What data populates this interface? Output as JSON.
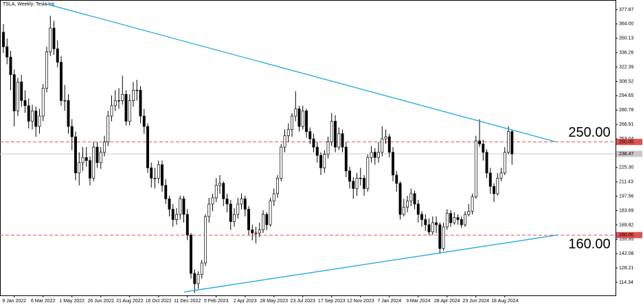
{
  "chart_data": {
    "type": "candlestick",
    "title": "TSLA, Weekly:  Tesla Inc",
    "xlim": [
      -0.95,
      169.7
    ],
    "ylim": [
      101.73,
      387.16
    ],
    "yticks": [
      377.87,
      {
        "value": 364.0,
        "label": "364.00"
      },
      350.13,
      336.26,
      322.39,
      308.52,
      294.65,
      280.78,
      266.91,
      253.04,
      239.17,
      {
        "value": 225.3,
        "label": "225.30"
      },
      211.43,
      197.56,
      183.69,
      169.82,
      155.95,
      142.08,
      128.21,
      114.34
    ],
    "xticks": [
      {
        "value": 3,
        "label": "9 Jan 2022"
      },
      {
        "value": 11,
        "label": "6 Mar 2022"
      },
      {
        "value": 19,
        "label": "1 May 2022"
      },
      {
        "value": 27,
        "label": "26 Jun 2022"
      },
      {
        "value": 35,
        "label": "21 Aug 2022"
      },
      {
        "value": 43,
        "label": "16 Oct 2022"
      },
      {
        "value": 51,
        "label": "11 Dec 2022"
      },
      {
        "value": 59,
        "label": "5 Feb 2023"
      },
      {
        "value": 67,
        "label": "2 Apr 2023"
      },
      {
        "value": 75,
        "label": "28 May 2023"
      },
      {
        "value": 83,
        "label": "23 Jul 2023"
      },
      {
        "value": 91,
        "label": "17 Sep 2023"
      },
      {
        "value": 99,
        "label": "12 Nov 2023"
      },
      {
        "value": 107,
        "label": "7 Jan 2024"
      },
      {
        "value": 115,
        "label": "3 Mar 2024"
      },
      {
        "value": 123,
        "label": "28 Apr 2024"
      },
      {
        "value": 131,
        "label": "23 Jun 2024"
      },
      {
        "value": 139,
        "label": "18 Aug 2024"
      }
    ],
    "up_color": "#ffffff",
    "down_color": "#000000",
    "ohlc": [
      [
        356,
        364,
        336,
        342
      ],
      [
        342,
        350,
        325,
        332
      ],
      [
        332,
        338,
        300,
        315
      ],
      [
        315,
        320,
        265,
        280
      ],
      [
        280,
        312,
        275,
        308
      ],
      [
        308,
        315,
        284,
        290
      ],
      [
        290,
        300,
        278,
        285
      ],
      [
        285,
        292,
        263,
        270
      ],
      [
        270,
        286,
        262,
        280
      ],
      [
        280,
        284,
        255,
        265
      ],
      [
        265,
        282,
        258,
        275
      ],
      [
        275,
        306,
        270,
        302
      ],
      [
        302,
        342,
        298,
        337
      ],
      [
        337,
        372,
        333,
        360
      ],
      [
        360,
        367,
        334,
        340
      ],
      [
        340,
        348,
        322,
        327
      ],
      [
        327,
        333,
        285,
        290
      ],
      [
        290,
        305,
        280,
        290
      ],
      [
        290,
        296,
        258,
        265
      ],
      [
        265,
        272,
        242,
        255
      ],
      [
        255,
        260,
        213,
        220
      ],
      [
        220,
        240,
        208,
        230
      ],
      [
        230,
        245,
        222,
        235
      ],
      [
        235,
        245,
        226,
        232
      ],
      [
        232,
        236,
        208,
        215
      ],
      [
        215,
        250,
        212,
        245
      ],
      [
        245,
        250,
        225,
        230
      ],
      [
        230,
        245,
        224,
        240
      ],
      [
        240,
        256,
        236,
        250
      ],
      [
        250,
        280,
        246,
        275
      ],
      [
        275,
        295,
        270,
        285
      ],
      [
        285,
        300,
        280,
        290
      ],
      [
        290,
        302,
        282,
        290
      ],
      [
        290,
        314,
        286,
        296
      ],
      [
        296,
        300,
        266,
        270
      ],
      [
        270,
        296,
        266,
        290
      ],
      [
        290,
        308,
        284,
        300
      ],
      [
        300,
        310,
        290,
        300
      ],
      [
        300,
        304,
        268,
        275
      ],
      [
        275,
        282,
        258,
        265
      ],
      [
        265,
        268,
        220,
        225
      ],
      [
        225,
        230,
        206,
        215
      ],
      [
        215,
        225,
        205,
        215
      ],
      [
        215,
        232,
        210,
        228
      ],
      [
        228,
        232,
        202,
        208
      ],
      [
        208,
        214,
        190,
        195
      ],
      [
        195,
        198,
        178,
        185
      ],
      [
        185,
        190,
        168,
        175
      ],
      [
        175,
        186,
        170,
        180
      ],
      [
        180,
        198,
        175,
        195
      ],
      [
        195,
        198,
        172,
        180
      ],
      [
        180,
        185,
        155,
        160
      ],
      [
        160,
        162,
        118,
        123
      ],
      [
        123,
        127,
        104,
        113
      ],
      [
        113,
        125,
        108,
        122
      ],
      [
        122,
        136,
        118,
        133
      ],
      [
        133,
        180,
        130,
        178
      ],
      [
        178,
        196,
        172,
        190
      ],
      [
        190,
        200,
        183,
        196
      ],
      [
        196,
        215,
        192,
        208
      ],
      [
        208,
        218,
        200,
        210
      ],
      [
        210,
        212,
        188,
        195
      ],
      [
        195,
        200,
        182,
        190
      ],
      [
        190,
        194,
        165,
        173
      ],
      [
        173,
        186,
        168,
        180
      ],
      [
        180,
        196,
        176,
        190
      ],
      [
        190,
        200,
        185,
        195
      ],
      [
        195,
        198,
        178,
        185
      ],
      [
        185,
        188,
        160,
        165
      ],
      [
        165,
        170,
        155,
        162
      ],
      [
        162,
        168,
        152,
        162
      ],
      [
        162,
        172,
        158,
        165
      ],
      [
        165,
        184,
        162,
        180
      ],
      [
        180,
        182,
        165,
        170
      ],
      [
        170,
        196,
        168,
        193
      ],
      [
        193,
        205,
        188,
        200
      ],
      [
        200,
        218,
        196,
        215
      ],
      [
        215,
        248,
        212,
        245
      ],
      [
        245,
        262,
        240,
        256
      ],
      [
        256,
        268,
        250,
        262
      ],
      [
        262,
        278,
        255,
        275
      ],
      [
        275,
        299,
        270,
        282
      ],
      [
        282,
        285,
        260,
        265
      ],
      [
        265,
        285,
        262,
        280
      ],
      [
        280,
        282,
        254,
        260
      ],
      [
        260,
        264,
        248,
        253
      ],
      [
        253,
        258,
        240,
        245
      ],
      [
        245,
        250,
        230,
        237
      ],
      [
        237,
        240,
        218,
        225
      ],
      [
        225,
        242,
        220,
        238
      ],
      [
        238,
        255,
        234,
        250
      ],
      [
        250,
        278,
        246,
        270
      ],
      [
        270,
        276,
        240,
        245
      ],
      [
        245,
        264,
        242,
        258
      ],
      [
        258,
        262,
        240,
        245
      ],
      [
        245,
        250,
        216,
        222
      ],
      [
        222,
        226,
        205,
        212
      ],
      [
        212,
        216,
        195,
        205
      ],
      [
        205,
        220,
        198,
        215
      ],
      [
        215,
        225,
        208,
        215
      ],
      [
        215,
        218,
        198,
        205
      ],
      [
        205,
        238,
        202,
        235
      ],
      [
        235,
        246,
        230,
        240
      ],
      [
        240,
        244,
        228,
        235
      ],
      [
        235,
        250,
        230,
        240
      ],
      [
        240,
        265,
        236,
        253
      ],
      [
        253,
        262,
        248,
        255
      ],
      [
        255,
        258,
        235,
        240
      ],
      [
        240,
        245,
        212,
        218
      ],
      [
        218,
        222,
        202,
        210
      ],
      [
        210,
        212,
        175,
        180
      ],
      [
        180,
        195,
        178,
        187
      ],
      [
        187,
        198,
        182,
        193
      ],
      [
        193,
        205,
        188,
        200
      ],
      [
        200,
        203,
        185,
        190
      ],
      [
        190,
        194,
        172,
        180
      ],
      [
        180,
        183,
        168,
        175
      ],
      [
        175,
        180,
        164,
        170
      ],
      [
        170,
        176,
        160,
        163
      ],
      [
        163,
        178,
        160,
        172
      ],
      [
        172,
        178,
        162,
        170
      ],
      [
        170,
        172,
        142,
        147
      ],
      [
        147,
        172,
        145,
        168
      ],
      [
        168,
        185,
        165,
        181
      ],
      [
        181,
        184,
        168,
        172
      ],
      [
        172,
        182,
        170,
        177
      ],
      [
        177,
        180,
        170,
        175
      ],
      [
        175,
        178,
        167,
        170
      ],
      [
        170,
        183,
        168,
        180
      ],
      [
        180,
        190,
        178,
        183
      ],
      [
        183,
        200,
        180,
        197
      ],
      [
        197,
        256,
        195,
        251
      ],
      [
        251,
        272,
        245,
        248
      ],
      [
        248,
        252,
        232,
        240
      ],
      [
        240,
        243,
        215,
        220
      ],
      [
        220,
        225,
        200,
        207
      ],
      [
        207,
        210,
        192,
        200
      ],
      [
        200,
        220,
        198,
        215
      ],
      [
        215,
        225,
        212,
        220
      ],
      [
        220,
        245,
        218,
        240
      ],
      [
        240,
        265,
        238,
        260
      ],
      [
        260,
        262,
        228,
        238.47
      ]
    ],
    "trendlines": [
      {
        "points": [
          [
            11.4,
            383.8
          ],
          [
            153.3,
            250
          ]
        ],
        "color": "#1ea7e1"
      },
      {
        "points": [
          [
            50.1,
            105
          ],
          [
            153.7,
            160.1
          ]
        ],
        "color": "#1ea7e1"
      }
    ],
    "hlines": [
      {
        "value": 250,
        "label": "250.00",
        "color": "#e05050"
      },
      {
        "value": 160,
        "label": "160.00",
        "color": "#e05050"
      }
    ],
    "annotation_color": "#1a1ae6",
    "current_price": {
      "value": 238.47,
      "label": "238.47",
      "color": "#c8c8c8"
    }
  }
}
